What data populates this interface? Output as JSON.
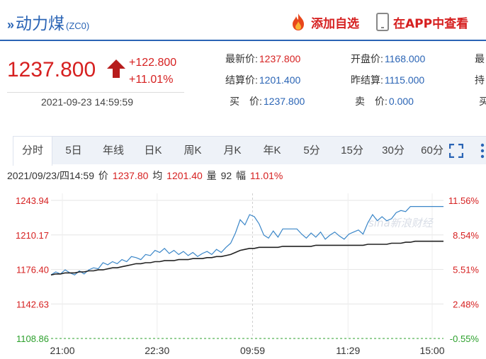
{
  "header": {
    "title": "动力煤",
    "code": "(ZC0)",
    "add_favorite_label": "添加自选",
    "app_label": "在APP中查看"
  },
  "quote": {
    "price": "1237.800",
    "change": "+122.800",
    "change_pct": "+11.01%",
    "timestamp": "2021-09-23 14:59:59",
    "fields": [
      {
        "label": "最新价:",
        "value": "1237.800",
        "color": "red"
      },
      {
        "label": "开盘价:",
        "value": "1168.000",
        "color": "blue"
      },
      {
        "label": "最",
        "value": ""
      },
      {
        "label": "结算价:",
        "value": "1201.400",
        "color": "blue"
      },
      {
        "label": "昨结算:",
        "value": "1115.000",
        "color": "blue"
      },
      {
        "label": "持",
        "value": ""
      },
      {
        "label": "买　价:",
        "value": "1237.800",
        "color": "blue"
      },
      {
        "label": "卖　价:",
        "value": "0.000",
        "color": "blue"
      },
      {
        "label": "买",
        "value": ""
      }
    ]
  },
  "tabs": [
    "分时",
    "5日",
    "年线",
    "日K",
    "周K",
    "月K",
    "年K",
    "5分",
    "15分",
    "30分",
    "60分"
  ],
  "info_line": {
    "datetime": "2021/09/23/四14:59",
    "price_label": "价",
    "price": "1237.80",
    "avg_label": "均",
    "avg": "1201.40",
    "volume_label": "量",
    "volume": "92",
    "range_label": "幅",
    "range": "11.01%"
  },
  "chart_data": {
    "type": "line",
    "left_ticks": [
      "1243.94",
      "1210.17",
      "1176.40",
      "1142.63",
      "1108.86"
    ],
    "right_ticks": [
      "11.56%",
      "8.54%",
      "5.51%",
      "2.48%",
      "-0.55%"
    ],
    "x_ticks": [
      "21:00",
      "22:30",
      "09:59",
      "11:29",
      "15:00"
    ],
    "ylim": [
      1108.86,
      1243.94
    ],
    "base": 1115.0,
    "watermark": "sina新浪财经",
    "series": [
      {
        "color": "#3a86c8",
        "values": [
          1171,
          1174,
          1172,
          1176,
          1173,
          1171,
          1175,
          1172,
          1176,
          1178,
          1177,
          1183,
          1181,
          1184,
          1182,
          1186,
          1184,
          1189,
          1188,
          1186,
          1191,
          1190,
          1195,
          1193,
          1197,
          1192,
          1195,
          1191,
          1194,
          1190,
          1193,
          1189,
          1192,
          1194,
          1191,
          1196,
          1193,
          1198,
          1202,
          1212,
          1225,
          1220,
          1230,
          1228,
          1221,
          1210,
          1207,
          1214,
          1208,
          1216,
          1216,
          1216,
          1216,
          1211,
          1207,
          1212,
          1208,
          1213,
          1206,
          1210,
          1213,
          1209,
          1206,
          1211,
          1213,
          1215,
          1211,
          1222,
          1230,
          1224,
          1228,
          1224,
          1226,
          1232,
          1234,
          1233,
          1238,
          1238,
          1238,
          1238,
          1238,
          1238,
          1238,
          1238
        ]
      },
      {
        "color": "#222222",
        "values": [
          1171,
          1172,
          1172,
          1173,
          1173,
          1173,
          1174,
          1174,
          1175,
          1175,
          1176,
          1176,
          1177,
          1178,
          1178,
          1179,
          1180,
          1181,
          1182,
          1182,
          1183,
          1183,
          1184,
          1184,
          1185,
          1185,
          1185,
          1186,
          1186,
          1186,
          1187,
          1187,
          1187,
          1188,
          1188,
          1189,
          1189,
          1190,
          1191,
          1193,
          1195,
          1196,
          1197,
          1197,
          1198,
          1198,
          1198,
          1198,
          1198,
          1199,
          1199,
          1199,
          1199,
          1199,
          1199,
          1199,
          1200,
          1200,
          1200,
          1200,
          1200,
          1200,
          1200,
          1200,
          1200,
          1200,
          1200,
          1201,
          1201,
          1201,
          1201,
          1201,
          1202,
          1202,
          1202,
          1203,
          1203,
          1204,
          1204,
          1204,
          1204,
          1204,
          1204,
          1204
        ]
      }
    ]
  },
  "colors": {
    "accent": "#2a64b5",
    "up": "#d62020",
    "price_line": "#3a86c8",
    "avg_line": "#222222"
  }
}
